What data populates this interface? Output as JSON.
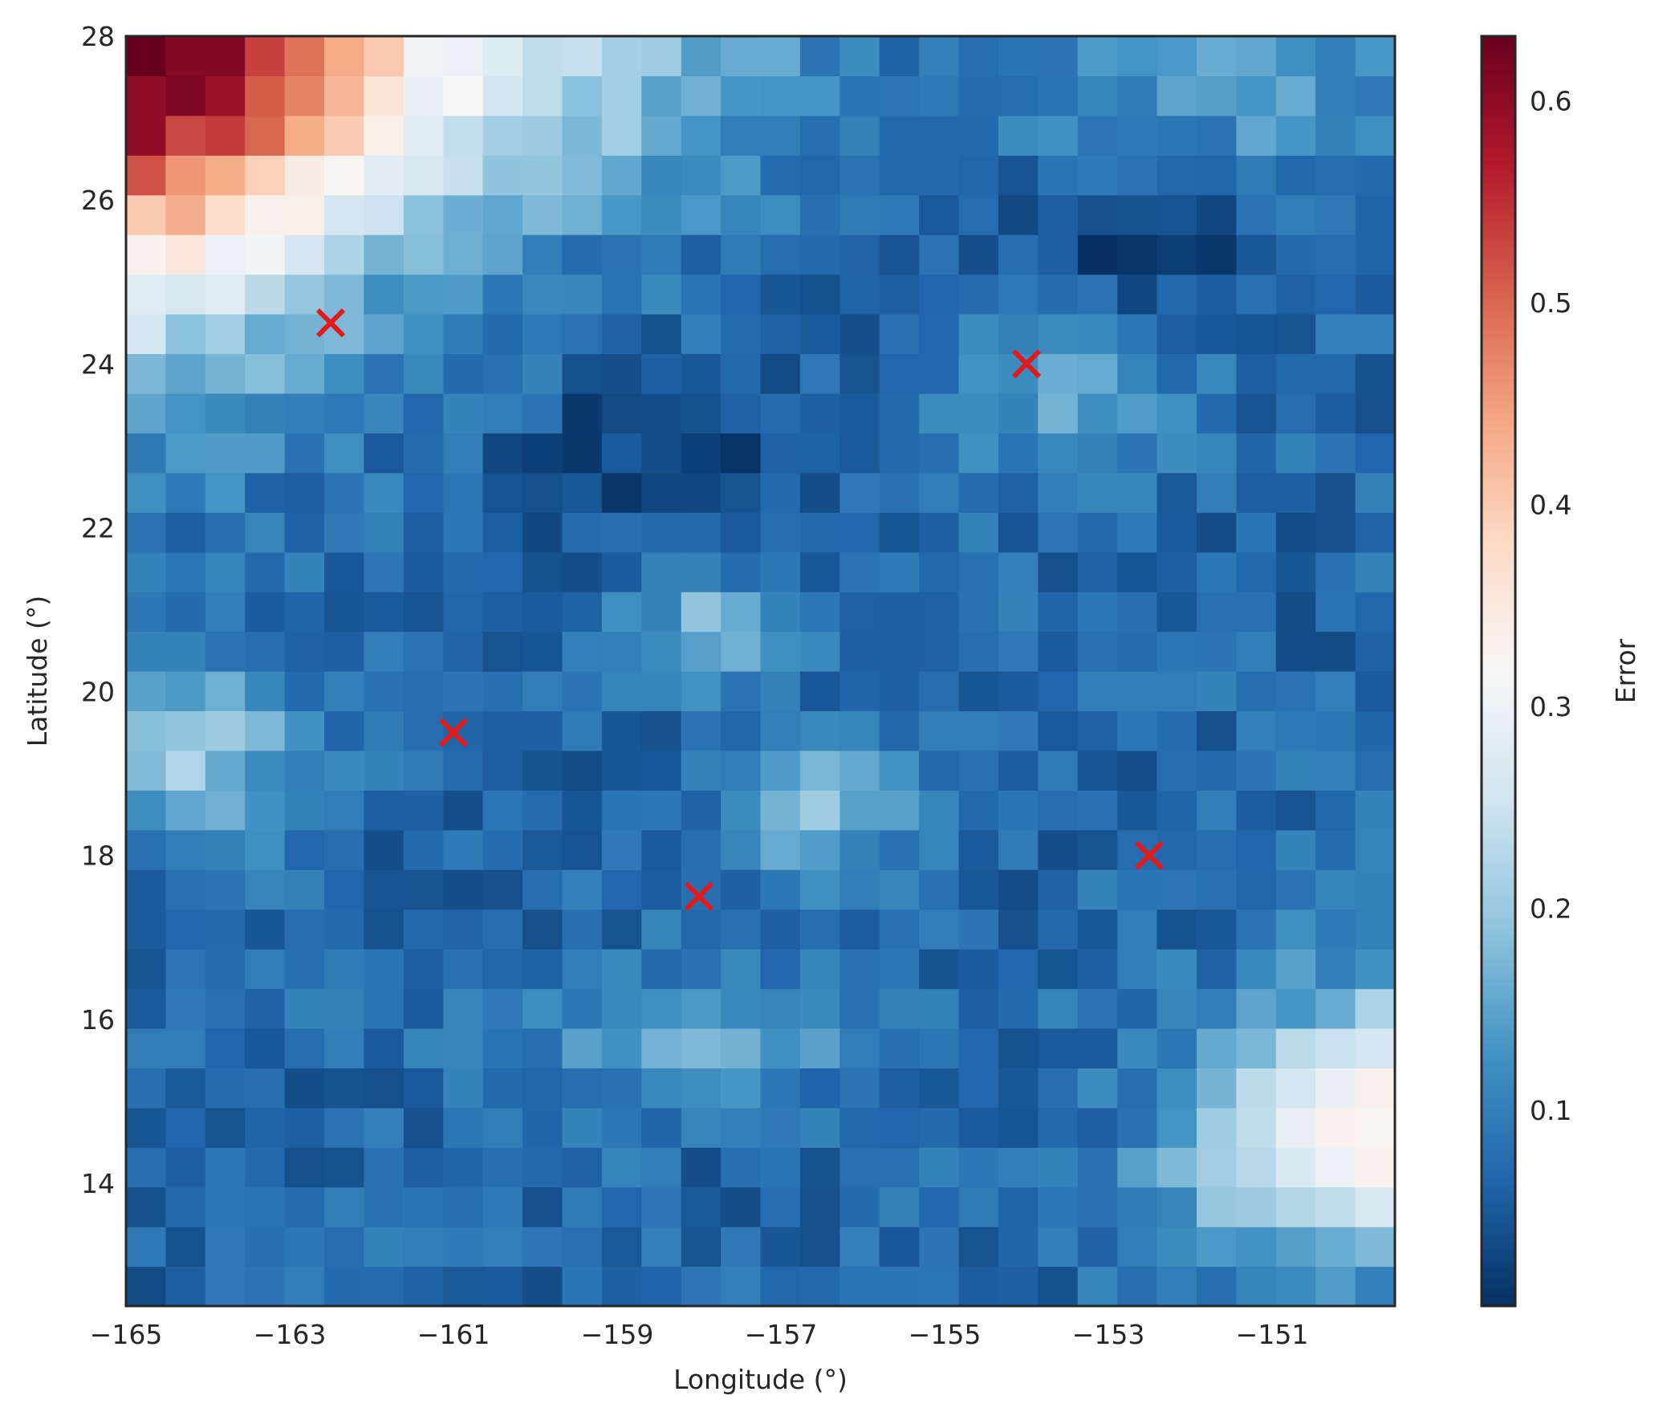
{
  "chart_data": {
    "type": "heatmap",
    "xlabel": "Longitude (°)",
    "ylabel": "Latitude (°)",
    "colorbar_label": "Error",
    "colormap": "RdBu_r",
    "colormap_stops": [
      "#053061",
      "#2166ac",
      "#4393c3",
      "#92c5de",
      "#d1e5f0",
      "#f7f7f7",
      "#fddbc7",
      "#f4a582",
      "#d6604d",
      "#b2182b",
      "#67001f"
    ],
    "value_range": [
      0.003,
      0.632
    ],
    "xlim": [
      -165,
      -149.5
    ],
    "ylim": [
      12.5,
      28
    ],
    "grid": false,
    "xticks": [
      -165,
      -163,
      -161,
      -159,
      -157,
      -155,
      -153,
      -151
    ],
    "xtick_labels": [
      "−165",
      "−163",
      "−161",
      "−159",
      "−157",
      "−155",
      "−153",
      "−151"
    ],
    "yticks": [
      14,
      16,
      18,
      20,
      22,
      24,
      26,
      28
    ],
    "ytick_labels": [
      "14",
      "16",
      "18",
      "20",
      "22",
      "24",
      "26",
      "28"
    ],
    "colorbar_ticks": [
      0.1,
      0.2,
      0.3,
      0.4,
      0.5,
      0.6
    ],
    "colorbar_tick_labels": [
      "0.1",
      "0.2",
      "0.3",
      "0.4",
      "0.5",
      "0.6"
    ],
    "grid_spec": {
      "lon_start": -165,
      "lat_start": 12.5,
      "cell_size": 0.484375,
      "cols": 32,
      "rows": 32
    },
    "markers": {
      "symbol": "x",
      "color": "#e31a1c",
      "points": [
        {
          "lon": -162.5,
          "lat": 24.5
        },
        {
          "lon": -154.0,
          "lat": 24.0
        },
        {
          "lon": -161.0,
          "lat": 19.5
        },
        {
          "lon": -152.5,
          "lat": 18.0
        },
        {
          "lon": -158.0,
          "lat": 17.5
        }
      ]
    }
  }
}
